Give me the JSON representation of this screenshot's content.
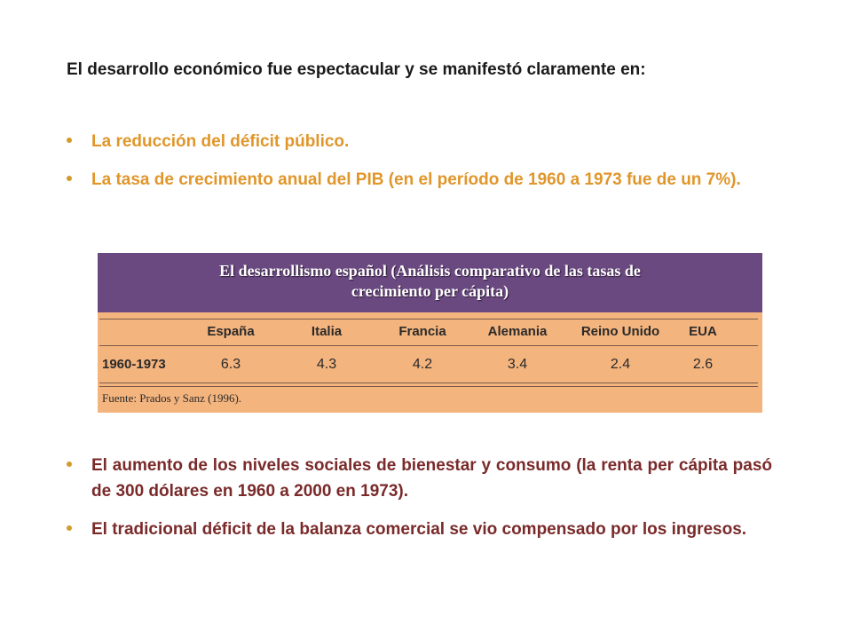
{
  "heading": "El desarrollo económico fue espectacular y se manifestó claramente en:",
  "bullets_top": [
    "La reducción del déficit público.",
    "La tasa de crecimiento anual del PIB (en el período de 1960 a 1973 fue de un 7%)."
  ],
  "table": {
    "title_line1": "El desarrollismo español (Análisis comparativo de las tasas de",
    "title_line2": "crecimiento per cápita)",
    "columns": [
      "España",
      "Italia",
      "Francia",
      "Alemania",
      "Reino Unido",
      "EUA"
    ],
    "row_label": "1960-1973",
    "values": [
      "6.3",
      "4.3",
      "4.2",
      "3.4",
      "2.4",
      "2.6"
    ],
    "source": "Fuente: Prados y Sanz (1996)."
  },
  "bullets_bottom": [
    "El aumento de los niveles sociales de bienestar y consumo (la renta per cápita pasó de 300 dólares en 1960 a 2000 en 1973).",
    "El tradicional déficit de la balanza comercial se vio compensado por los ingresos."
  ],
  "colors": {
    "bullet_top_text": "#e0962a",
    "bullet_bottom_text": "#7a2a2a",
    "table_title_bg": "#6a4880",
    "table_bg": "#f4b47e"
  }
}
